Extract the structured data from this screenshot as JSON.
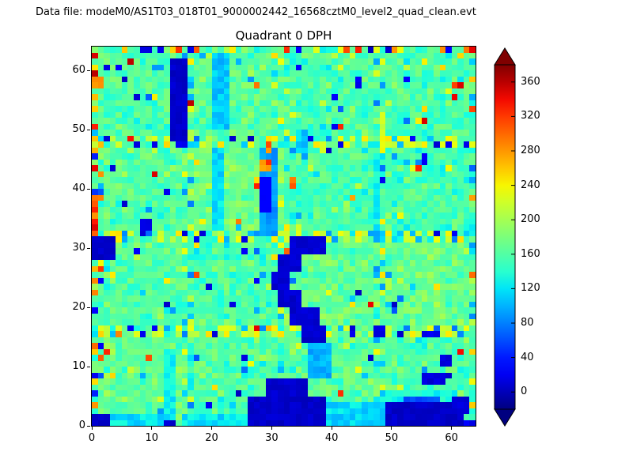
{
  "header": {
    "datafile": "Data file: modeM0/AS1T03_018T01_9000002442_16568cztM0_level2_quad_clean.evt"
  },
  "chart_data": {
    "type": "heatmap",
    "title": "Quadrant 0 DPH",
    "grid": {
      "nx": 64,
      "ny": 64
    },
    "x_range": [
      0,
      64
    ],
    "y_range": [
      0,
      64
    ],
    "x_ticks": [
      0,
      10,
      20,
      30,
      40,
      50,
      60
    ],
    "y_ticks": [
      0,
      10,
      20,
      30,
      40,
      50,
      60
    ],
    "colormap": "jet",
    "colorbar": {
      "ticks": [
        0,
        40,
        80,
        120,
        160,
        200,
        240,
        280,
        320,
        360
      ],
      "vmin": -20,
      "vmax": 380,
      "extend": "both"
    },
    "background": {
      "mean": 162,
      "std": 16,
      "seed": 20,
      "module_size": 16
    },
    "boundary_rows": [
      15,
      16,
      31,
      32,
      47,
      48
    ],
    "boundary_cols": [
      15,
      16,
      31,
      32,
      47,
      48
    ],
    "features": [
      [
        26,
        0,
        13,
        5,
        6
      ],
      [
        29,
        5,
        7,
        3,
        7
      ],
      [
        49,
        0,
        13,
        4,
        6
      ],
      [
        49,
        4,
        12,
        2,
        130
      ],
      [
        52,
        4,
        6,
        1,
        60
      ],
      [
        0,
        0,
        3,
        2,
        6
      ],
      [
        3,
        0,
        9,
        2,
        120
      ],
      [
        15,
        0,
        11,
        2,
        118
      ],
      [
        39,
        0,
        10,
        4,
        115
      ],
      [
        12,
        1,
        2,
        12,
        125
      ],
      [
        36,
        8,
        4,
        6,
        100
      ],
      [
        35,
        14,
        4,
        3,
        8
      ],
      [
        33,
        17,
        5,
        3,
        8
      ],
      [
        31,
        20,
        4,
        3,
        8
      ],
      [
        30,
        23,
        3,
        3,
        8
      ],
      [
        31,
        26,
        4,
        3,
        8
      ],
      [
        33,
        29,
        6,
        3,
        8
      ],
      [
        0,
        28,
        4,
        4,
        6
      ],
      [
        8,
        33,
        2,
        2,
        15
      ],
      [
        20,
        33,
        2,
        14,
        115
      ],
      [
        47,
        33,
        1,
        13,
        130
      ],
      [
        28,
        32,
        3,
        15,
        90
      ],
      [
        28,
        36,
        2,
        6,
        25
      ],
      [
        28,
        43,
        2,
        2,
        290
      ],
      [
        29,
        46,
        1,
        2,
        310
      ],
      [
        33,
        40,
        1,
        2,
        290
      ],
      [
        34,
        46,
        2,
        4,
        110
      ],
      [
        13,
        48,
        3,
        14,
        6
      ],
      [
        20,
        50,
        3,
        13,
        108
      ],
      [
        55,
        7,
        4,
        2,
        12
      ],
      [
        58,
        10,
        2,
        2,
        12
      ],
      [
        60,
        2,
        3,
        3,
        12
      ],
      [
        47,
        15,
        2,
        2,
        15
      ],
      [
        55,
        15,
        3,
        1,
        18
      ],
      [
        55,
        44,
        1,
        2,
        20
      ],
      [
        44,
        57,
        1,
        2,
        20
      ],
      [
        60,
        57,
        1,
        1,
        345
      ],
      [
        0,
        57,
        2,
        2,
        295
      ]
    ]
  }
}
